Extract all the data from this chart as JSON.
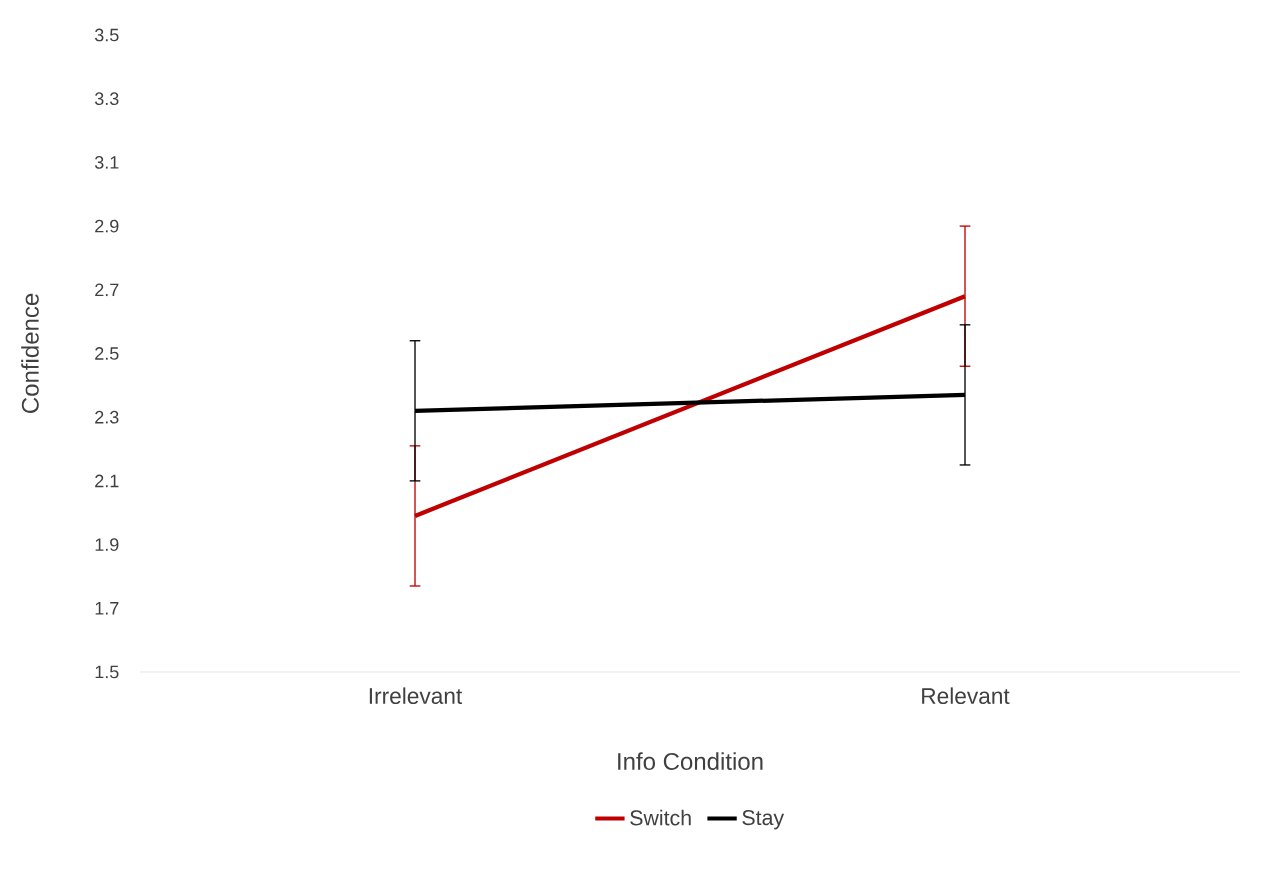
{
  "chart_data": {
    "type": "line",
    "xlabel": "Info Condition",
    "ylabel": "Confidence",
    "categories": [
      "Irrelevant",
      "Relevant"
    ],
    "series": [
      {
        "name": "Switch",
        "color": "#c00000",
        "values": [
          1.99,
          2.68
        ],
        "errors": [
          0.22,
          0.22
        ]
      },
      {
        "name": "Stay",
        "color": "#000000",
        "values": [
          2.32,
          2.37
        ],
        "errors": [
          0.22,
          0.22
        ]
      }
    ],
    "ylim": [
      1.5,
      3.5
    ],
    "yticks": [
      1.5,
      1.7,
      1.9,
      2.1,
      2.3,
      2.5,
      2.7,
      2.9,
      3.1,
      3.3,
      3.5
    ],
    "legend": "bottom"
  }
}
